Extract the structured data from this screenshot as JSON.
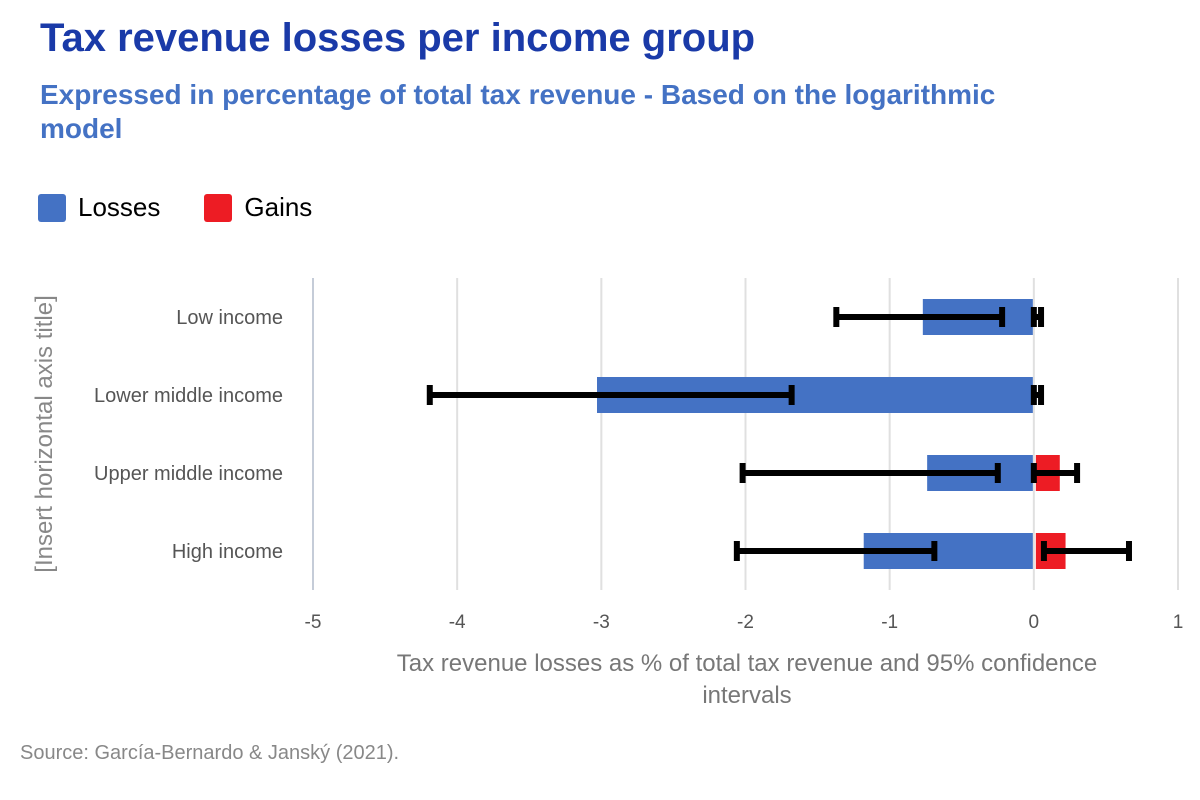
{
  "title": "Tax revenue losses per income group",
  "subtitle": "Expressed in percentage of total tax revenue - Based on the logarithmic model",
  "source": "Source: García-Bernardo & Janský (2021).",
  "colors": {
    "losses": "#4472c4",
    "gains": "#ed1c24",
    "title": "#1a3aa8",
    "subtitle": "#4472c4"
  },
  "chart_data": {
    "type": "bar",
    "orientation": "horizontal",
    "categories": [
      "Low income",
      "Lower middle income",
      "Upper middle income",
      "High income"
    ],
    "series": [
      {
        "name": "Losses",
        "values": [
          -0.77,
          -3.03,
          -0.74,
          -1.18
        ],
        "ci": [
          [
            -1.37,
            -0.22
          ],
          [
            -4.19,
            -1.68
          ],
          [
            -2.02,
            -0.25
          ],
          [
            -2.06,
            -0.69
          ]
        ]
      },
      {
        "name": "Gains",
        "values": [
          0,
          0,
          0.18,
          0.22
        ],
        "ci": [
          [
            0,
            0.05
          ],
          [
            0,
            0.05
          ],
          [
            0,
            0.3
          ],
          [
            0.07,
            0.66
          ]
        ]
      }
    ],
    "xlabel": "Tax revenue losses as % of total tax revenue and 95% confidence intervals",
    "ylabel": "[Insert horizontal axis title]",
    "xlim": [
      -5,
      1
    ],
    "xticks": [
      "-5",
      "-4",
      "-3",
      "-2",
      "-1",
      "0",
      "1"
    ],
    "grid": true,
    "legend": "top-left"
  }
}
